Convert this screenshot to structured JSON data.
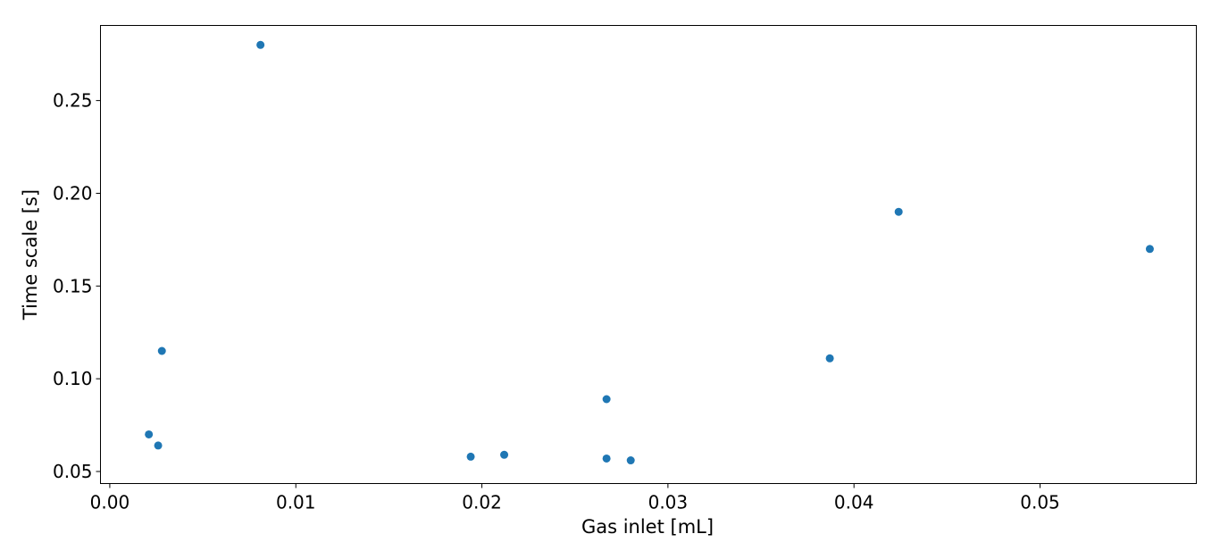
{
  "chart_data": {
    "type": "scatter",
    "title": "",
    "xlabel": "Gas inlet [mL]",
    "ylabel": "Time scale [s]",
    "xlim": [
      -0.0005,
      0.0584
    ],
    "ylim": [
      0.0435,
      0.2905
    ],
    "x_ticks": [
      0.0,
      0.01,
      0.02,
      0.03,
      0.04,
      0.05
    ],
    "x_tick_labels": [
      "0.00",
      "0.01",
      "0.02",
      "0.03",
      "0.04",
      "0.05"
    ],
    "y_ticks": [
      0.05,
      0.1,
      0.15,
      0.2,
      0.25
    ],
    "y_tick_labels": [
      "0.05",
      "0.10",
      "0.15",
      "0.20",
      "0.25"
    ],
    "grid": false,
    "legend": "none",
    "color": "#1f77b4",
    "points": [
      {
        "x": 0.0081,
        "y": 0.28
      },
      {
        "x": 0.0028,
        "y": 0.115
      },
      {
        "x": 0.0021,
        "y": 0.07
      },
      {
        "x": 0.0026,
        "y": 0.064
      },
      {
        "x": 0.0194,
        "y": 0.058
      },
      {
        "x": 0.0212,
        "y": 0.059
      },
      {
        "x": 0.0267,
        "y": 0.089
      },
      {
        "x": 0.0267,
        "y": 0.057
      },
      {
        "x": 0.028,
        "y": 0.056
      },
      {
        "x": 0.0387,
        "y": 0.111
      },
      {
        "x": 0.0424,
        "y": 0.19
      },
      {
        "x": 0.0559,
        "y": 0.17
      }
    ]
  }
}
